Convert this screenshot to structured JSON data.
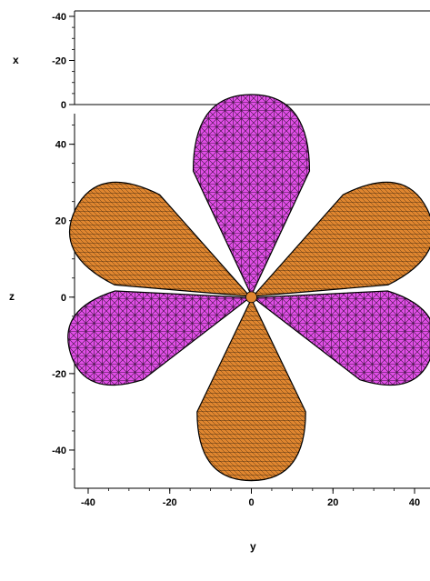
{
  "chart_data": {
    "type": "surface-3d",
    "title": "",
    "axes": {
      "x": {
        "label": "x",
        "ticks": [
          "-40",
          "-20",
          "0"
        ],
        "range": [
          -40,
          0
        ]
      },
      "y": {
        "label": "y",
        "ticks": [
          "-40",
          "-20",
          "0",
          "20",
          "40"
        ],
        "range": [
          -42,
          42
        ]
      },
      "z": {
        "label": "z",
        "ticks": [
          "40",
          "20",
          "0",
          "-20",
          "-40"
        ],
        "range": [
          -50,
          48
        ]
      }
    },
    "grid": false,
    "legend": "none",
    "colors": {
      "positive_lobe": "#e24fe8",
      "negative_lobe": "#e0862f",
      "mesh": "#000000",
      "frame": "#000000"
    },
    "lobes": [
      {
        "name": "",
        "phase": "magenta",
        "center_y": 0,
        "center_z": 33,
        "ry": 15,
        "rz": 20
      },
      {
        "name": "",
        "phase": "magenta",
        "center_y": -30,
        "center_z": -10,
        "ry": 12,
        "rz": 16
      },
      {
        "name": "",
        "phase": "magenta",
        "center_y": 30,
        "center_z": -10,
        "ry": 12,
        "rz": 16
      },
      {
        "name": "",
        "phase": "orange",
        "center_y": 0,
        "center_z": -30,
        "ry": 14,
        "rz": 18
      },
      {
        "name": "",
        "phase": "orange",
        "center_y": -28,
        "center_z": 15,
        "ry": 13,
        "rz": 18
      },
      {
        "name": "",
        "phase": "orange",
        "center_y": 28,
        "center_z": 15,
        "ry": 13,
        "rz": 18
      }
    ]
  }
}
